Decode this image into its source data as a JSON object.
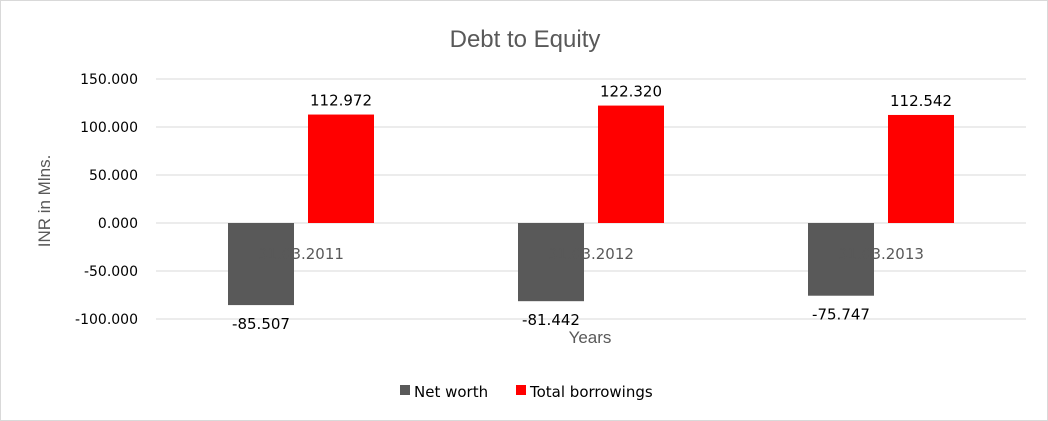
{
  "chart_data": {
    "type": "bar",
    "title": "Debt to Equity",
    "xlabel": "Years",
    "ylabel": "INR in Mlns.",
    "categories": [
      "31.03.2011",
      "31.03.2012",
      "31.03.2013"
    ],
    "series": [
      {
        "name": "Net worth",
        "values": [
          -85.507,
          -81.442,
          -75.747
        ],
        "color": "#595959"
      },
      {
        "name": "Total borrowings",
        "values": [
          112.972,
          122.32,
          112.542
        ],
        "color": "#ff0000"
      }
    ],
    "yticks": [
      "-100.000",
      "-50.000",
      "0.000",
      "50.000",
      "100.000",
      "150.000"
    ],
    "value_labels": {
      "Net worth": [
        "-85.507",
        "-81.442",
        "-75.747"
      ],
      "Total borrowings": [
        "112.972",
        "122.320",
        "112.542"
      ]
    },
    "ylim": [
      -100,
      150
    ],
    "grid": true,
    "legend_position": "bottom"
  }
}
